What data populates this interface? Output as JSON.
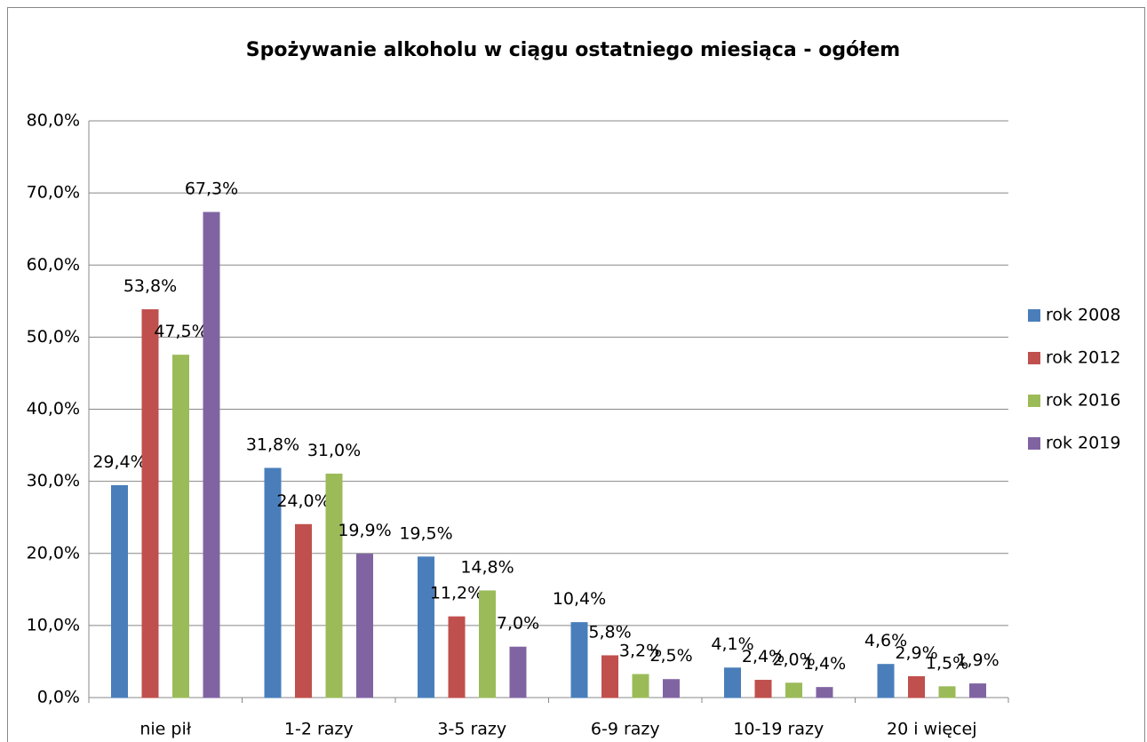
{
  "chart_data": {
    "type": "bar",
    "title": "Spożywanie alkoholu w ciągu ostatniego miesiąca - ogółem",
    "categories": [
      "nie pił",
      "1-2 razy",
      "3-5 razy",
      "6-9 razy",
      "10-19 razy",
      "20 i więcej"
    ],
    "series": [
      {
        "name": "rok 2008",
        "color": "#4a7ebb",
        "values": [
          29.4,
          31.8,
          19.5,
          10.4,
          4.1,
          4.6
        ],
        "value_labels": [
          "29,4%",
          "31,8%",
          "19,5%",
          "10,4%",
          "4,1%",
          "4,6%"
        ]
      },
      {
        "name": "rok 2012",
        "color": "#c0504d",
        "values": [
          53.8,
          24.0,
          11.2,
          5.8,
          2.4,
          2.9
        ],
        "value_labels": [
          "53,8%",
          "24,0%",
          "11,2%",
          "5,8%",
          "2,4%",
          "2,9%"
        ]
      },
      {
        "name": "rok 2016",
        "color": "#9bbb59",
        "values": [
          47.5,
          31.0,
          14.8,
          3.2,
          2.0,
          1.5
        ],
        "value_labels": [
          "47,5%",
          "31,0%",
          "14,8%",
          "3,2%",
          "2,0%",
          "1,5%"
        ]
      },
      {
        "name": "rok 2019",
        "color": "#8064a2",
        "values": [
          67.3,
          19.9,
          7.0,
          2.5,
          1.4,
          1.9
        ],
        "value_labels": [
          "67,3%",
          "19,9%",
          "7,0%",
          "2,5%",
          "1,4%",
          "1,9%"
        ]
      }
    ],
    "ylim": [
      0,
      80
    ],
    "yticks": [
      {
        "value": 0,
        "label": "0,0%"
      },
      {
        "value": 10,
        "label": "10,0%"
      },
      {
        "value": 20,
        "label": "20,0%"
      },
      {
        "value": 30,
        "label": "30,0%"
      },
      {
        "value": 40,
        "label": "40,0%"
      },
      {
        "value": 50,
        "label": "50,0%"
      },
      {
        "value": 60,
        "label": "60,0%"
      },
      {
        "value": 70,
        "label": "70,0%"
      },
      {
        "value": 80,
        "label": "80,0%"
      }
    ],
    "grid": true,
    "legend": "right"
  }
}
